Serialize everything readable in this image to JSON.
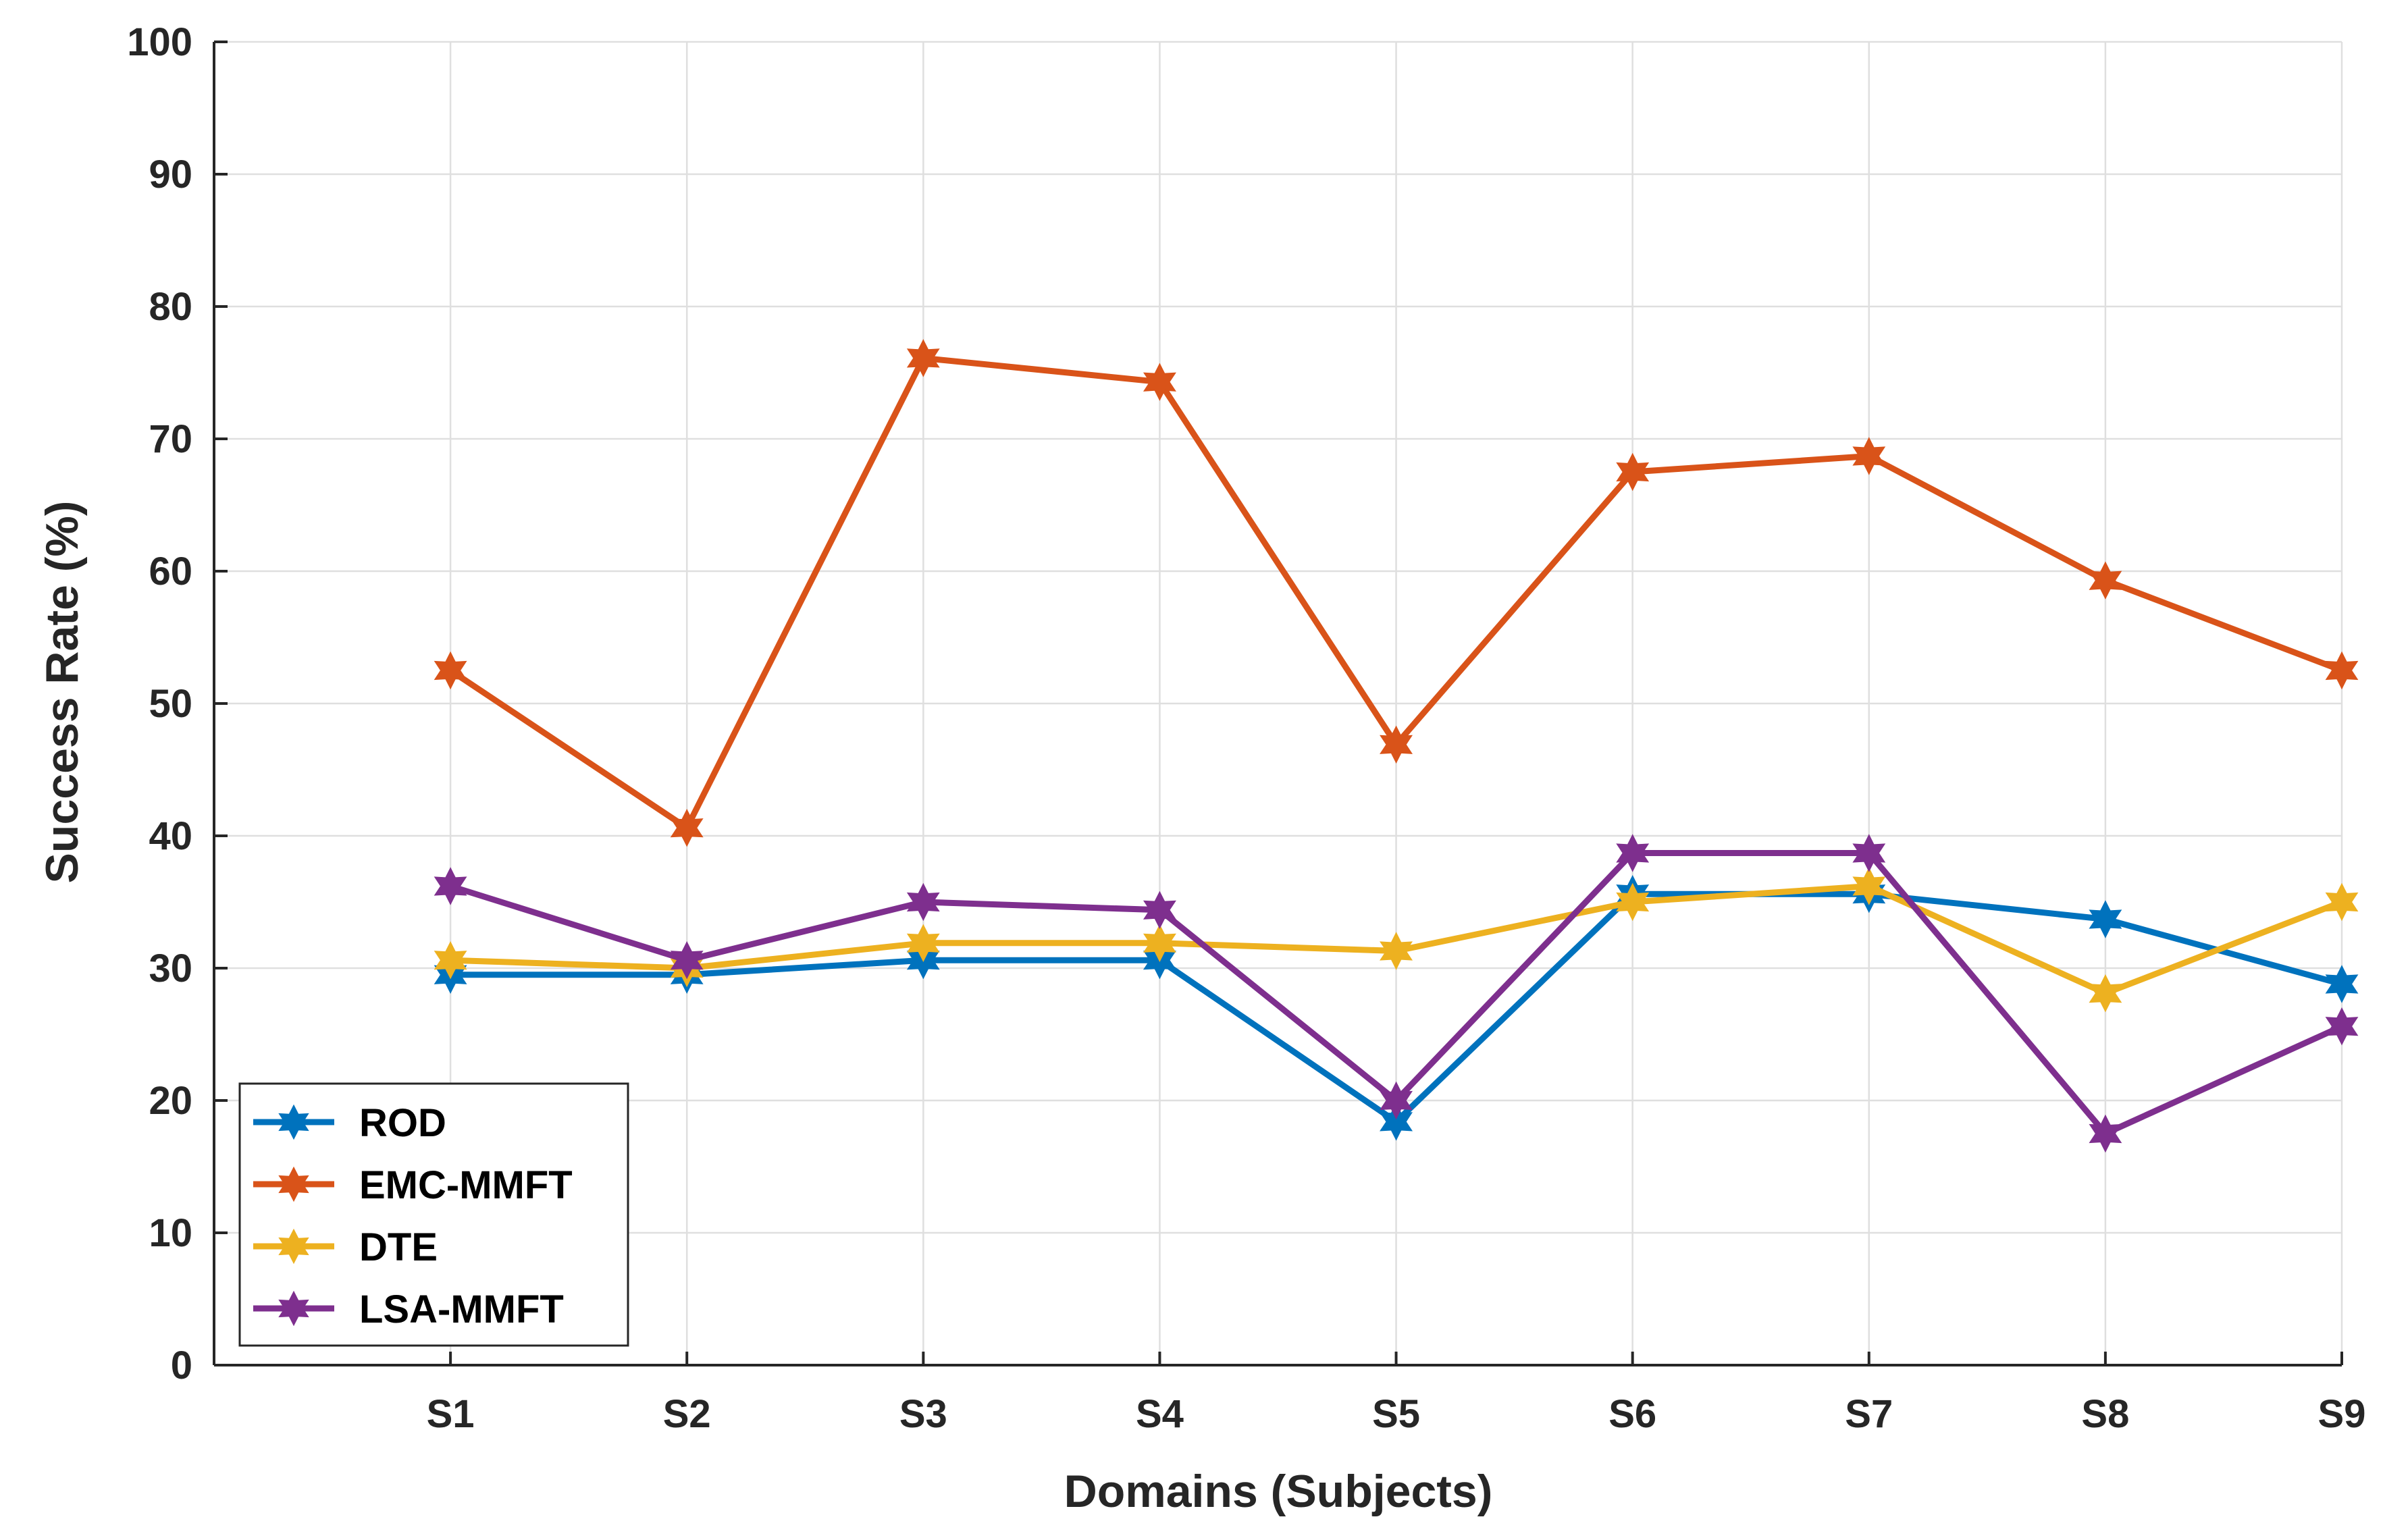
{
  "chart_data": {
    "type": "line",
    "title": "",
    "xlabel": "Domains (Subjects)",
    "ylabel": "Success Rate (%)",
    "categories": [
      "S1",
      "S2",
      "S3",
      "S4",
      "S5",
      "S6",
      "S7",
      "S8",
      "S9"
    ],
    "x_range": [
      0,
      9
    ],
    "ylim": [
      0,
      100
    ],
    "yticks": [
      0,
      10,
      20,
      30,
      40,
      50,
      60,
      70,
      80,
      90,
      100
    ],
    "grid": true,
    "legend_position": "bottom-left",
    "marker": "hexagram",
    "series": [
      {
        "name": "ROD",
        "color": "#0072BD",
        "values": [
          29.5,
          29.5,
          30.6,
          30.6,
          18.4,
          35.6,
          35.6,
          33.7,
          28.8
        ]
      },
      {
        "name": "EMC-MMFT",
        "color": "#D95319",
        "values": [
          52.5,
          40.6,
          76.1,
          74.3,
          46.9,
          67.5,
          68.7,
          59.3,
          52.5
        ]
      },
      {
        "name": "DTE",
        "color": "#EDB120",
        "values": [
          30.6,
          30.0,
          31.9,
          31.9,
          31.3,
          35.0,
          36.2,
          28.1,
          35.0
        ]
      },
      {
        "name": "LSA-MMFT",
        "color": "#7E2F8E",
        "values": [
          36.2,
          30.6,
          35.0,
          34.4,
          20.0,
          38.7,
          38.7,
          17.5,
          25.6
        ]
      }
    ]
  }
}
